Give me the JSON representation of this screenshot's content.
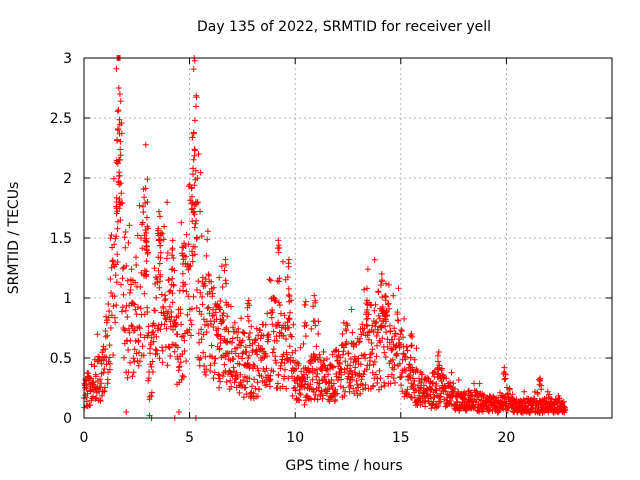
{
  "chart_data": {
    "type": "scatter",
    "title": "Day 135 of 2022, SRMTID for receiver yell",
    "xlabel": "GPS time / hours",
    "ylabel": "SRMTID / TECUs",
    "xlim": [
      0,
      25
    ],
    "ylim": [
      0,
      3
    ],
    "xticks": [
      0,
      5,
      10,
      15,
      20
    ],
    "xtick_labels": [
      "0",
      "5",
      "10",
      "15",
      "20"
    ],
    "yticks": [
      0,
      0.5,
      1,
      1.5,
      2,
      2.5,
      3
    ],
    "ytick_labels": [
      "0",
      "0.5",
      "1",
      "1.5",
      "2",
      "2.5",
      "3"
    ],
    "grid": true,
    "marker": "plus",
    "color": "#ff0000",
    "series": [
      {
        "name": "SRMTID",
        "envelope": [
          {
            "x": 0.0,
            "y": 0.22
          },
          {
            "x": 0.3,
            "y": 0.3
          },
          {
            "x": 0.7,
            "y": 0.38
          },
          {
            "x": 1.0,
            "y": 0.45
          },
          {
            "x": 1.3,
            "y": 0.9
          },
          {
            "x": 1.5,
            "y": 1.9
          },
          {
            "x": 1.65,
            "y": 2.75
          },
          {
            "x": 1.8,
            "y": 1.8
          },
          {
            "x": 2.0,
            "y": 0.8
          },
          {
            "x": 2.3,
            "y": 0.95
          },
          {
            "x": 2.6,
            "y": 0.85
          },
          {
            "x": 2.9,
            "y": 1.5
          },
          {
            "x": 3.1,
            "y": 0.4
          },
          {
            "x": 3.3,
            "y": 0.6
          },
          {
            "x": 3.6,
            "y": 1.2
          },
          {
            "x": 4.0,
            "y": 1.0
          },
          {
            "x": 4.4,
            "y": 0.7
          },
          {
            "x": 4.8,
            "y": 1.0
          },
          {
            "x": 5.1,
            "y": 1.6
          },
          {
            "x": 5.25,
            "y": 2.45
          },
          {
            "x": 5.4,
            "y": 1.3
          },
          {
            "x": 5.7,
            "y": 0.9
          },
          {
            "x": 6.0,
            "y": 0.8
          },
          {
            "x": 6.5,
            "y": 0.7
          },
          {
            "x": 7.0,
            "y": 0.55
          },
          {
            "x": 7.5,
            "y": 0.5
          },
          {
            "x": 8.0,
            "y": 0.45
          },
          {
            "x": 8.5,
            "y": 0.55
          },
          {
            "x": 9.0,
            "y": 0.75
          },
          {
            "x": 9.3,
            "y": 0.65
          },
          {
            "x": 9.7,
            "y": 0.7
          },
          {
            "x": 10.0,
            "y": 0.4
          },
          {
            "x": 10.5,
            "y": 0.3
          },
          {
            "x": 11.0,
            "y": 0.45
          },
          {
            "x": 11.5,
            "y": 0.35
          },
          {
            "x": 12.0,
            "y": 0.4
          },
          {
            "x": 12.5,
            "y": 0.45
          },
          {
            "x": 13.0,
            "y": 0.55
          },
          {
            "x": 13.5,
            "y": 0.7
          },
          {
            "x": 14.0,
            "y": 0.65
          },
          {
            "x": 14.5,
            "y": 0.75
          },
          {
            "x": 15.0,
            "y": 0.55
          },
          {
            "x": 15.5,
            "y": 0.3
          },
          {
            "x": 16.0,
            "y": 0.28
          },
          {
            "x": 16.5,
            "y": 0.22
          },
          {
            "x": 17.0,
            "y": 0.3
          },
          {
            "x": 17.5,
            "y": 0.18
          },
          {
            "x": 18.0,
            "y": 0.15
          },
          {
            "x": 18.5,
            "y": 0.16
          },
          {
            "x": 19.0,
            "y": 0.13
          },
          {
            "x": 19.5,
            "y": 0.12
          },
          {
            "x": 20.0,
            "y": 0.15
          },
          {
            "x": 20.5,
            "y": 0.1
          },
          {
            "x": 21.0,
            "y": 0.12
          },
          {
            "x": 21.5,
            "y": 0.11
          },
          {
            "x": 22.0,
            "y": 0.12
          },
          {
            "x": 22.5,
            "y": 0.1
          },
          {
            "x": 22.8,
            "y": 0.1
          }
        ],
        "peaks": [
          {
            "x": 1.65,
            "y": 2.75
          },
          {
            "x": 1.7,
            "y": 2.7
          },
          {
            "x": 1.6,
            "y": 2.4
          },
          {
            "x": 1.7,
            "y": 2.15
          },
          {
            "x": 1.55,
            "y": 1.8
          },
          {
            "x": 3.0,
            "y": 1.99
          },
          {
            "x": 3.0,
            "y": 1.8
          },
          {
            "x": 3.55,
            "y": 1.72
          },
          {
            "x": 3.6,
            "y": 1.68
          },
          {
            "x": 5.25,
            "y": 2.48
          },
          {
            "x": 5.2,
            "y": 2.37
          },
          {
            "x": 5.1,
            "y": 1.92
          },
          {
            "x": 5.3,
            "y": 1.8
          },
          {
            "x": 9.2,
            "y": 1.48
          },
          {
            "x": 9.7,
            "y": 1.32
          },
          {
            "x": 10.5,
            "y": 0.97
          },
          {
            "x": 10.9,
            "y": 1.02
          },
          {
            "x": 14.1,
            "y": 1.2
          },
          {
            "x": 14.3,
            "y": 1.12
          },
          {
            "x": 13.4,
            "y": 1.08
          },
          {
            "x": 15.5,
            "y": 0.7
          },
          {
            "x": 16.8,
            "y": 0.55
          },
          {
            "x": 19.9,
            "y": 0.42
          },
          {
            "x": 21.6,
            "y": 0.33
          },
          {
            "x": 7.8,
            "y": 0.98
          },
          {
            "x": 6.7,
            "y": 1.32
          },
          {
            "x": 6.4,
            "y": 1.17
          },
          {
            "x": 4.7,
            "y": 1.42
          },
          {
            "x": 4.2,
            "y": 1.48
          },
          {
            "x": 2.9,
            "y": 1.48
          }
        ],
        "lows": [
          {
            "x": 3.1,
            "y": 0.02
          },
          {
            "x": 3.2,
            "y": 0.0
          },
          {
            "x": 4.3,
            "y": 0.0
          },
          {
            "x": 4.5,
            "y": 0.05
          },
          {
            "x": 5.3,
            "y": 0.0
          },
          {
            "x": 2.0,
            "y": 0.05
          }
        ]
      }
    ]
  }
}
